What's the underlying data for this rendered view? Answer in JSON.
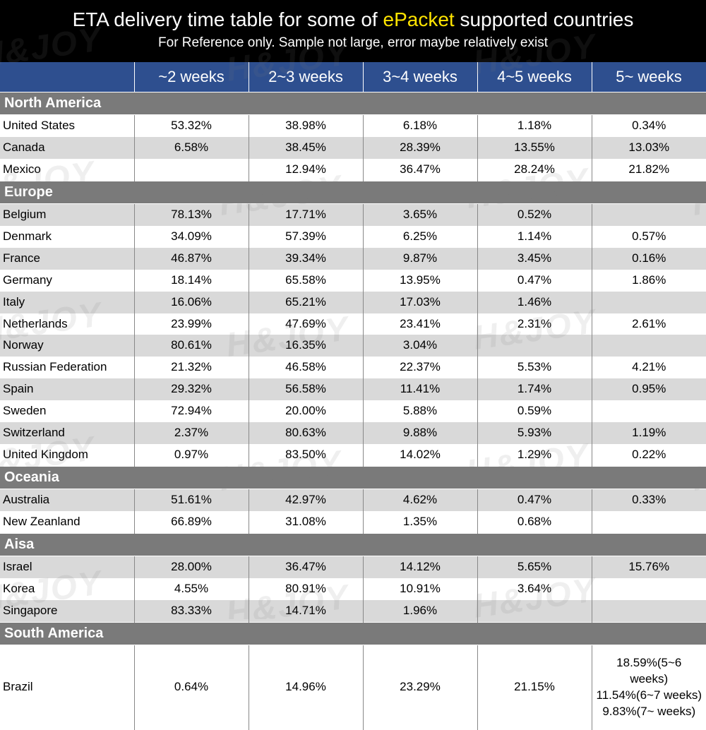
{
  "header": {
    "title_pre": "ETA delivery time table for some of ",
    "title_accent": "ePacket",
    "title_post": " supported countries",
    "subtitle": "For Reference only. Sample not large, error maybe relatively exist"
  },
  "columns": [
    "~2 weeks",
    "2~3 weeks",
    "3~4 weeks",
    "4~5 weeks",
    "5~  weeks"
  ],
  "regions": [
    {
      "name": "North America",
      "rows": [
        {
          "country": "United States",
          "alt": false,
          "v": [
            "53.32%",
            "38.98%",
            "6.18%",
            "1.18%",
            "0.34%"
          ]
        },
        {
          "country": "Canada",
          "alt": true,
          "v": [
            "6.58%",
            "38.45%",
            "28.39%",
            "13.55%",
            "13.03%"
          ]
        },
        {
          "country": "Mexico",
          "alt": false,
          "v": [
            "",
            "12.94%",
            "36.47%",
            "28.24%",
            "21.82%"
          ]
        }
      ]
    },
    {
      "name": "Europe",
      "rows": [
        {
          "country": "Belgium",
          "alt": true,
          "v": [
            "78.13%",
            "17.71%",
            "3.65%",
            "0.52%",
            ""
          ]
        },
        {
          "country": "Denmark",
          "alt": false,
          "v": [
            "34.09%",
            "57.39%",
            "6.25%",
            "1.14%",
            "0.57%"
          ]
        },
        {
          "country": "France",
          "alt": true,
          "v": [
            "46.87%",
            "39.34%",
            "9.87%",
            "3.45%",
            "0.16%"
          ]
        },
        {
          "country": "Germany",
          "alt": false,
          "v": [
            "18.14%",
            "65.58%",
            "13.95%",
            "0.47%",
            "1.86%"
          ]
        },
        {
          "country": "Italy",
          "alt": true,
          "v": [
            "16.06%",
            "65.21%",
            "17.03%",
            "1.46%",
            ""
          ]
        },
        {
          "country": "Netherlands",
          "alt": false,
          "v": [
            "23.99%",
            "47.69%",
            "23.41%",
            "2.31%",
            "2.61%"
          ]
        },
        {
          "country": "Norway",
          "alt": true,
          "v": [
            "80.61%",
            "16.35%",
            "3.04%",
            "",
            ""
          ]
        },
        {
          "country": "Russian Federation",
          "alt": false,
          "v": [
            "21.32%",
            "46.58%",
            "22.37%",
            "5.53%",
            "4.21%"
          ]
        },
        {
          "country": "Spain",
          "alt": true,
          "v": [
            "29.32%",
            "56.58%",
            "11.41%",
            "1.74%",
            "0.95%"
          ]
        },
        {
          "country": "Sweden",
          "alt": false,
          "v": [
            "72.94%",
            "20.00%",
            "5.88%",
            "0.59%",
            ""
          ]
        },
        {
          "country": "Switzerland",
          "alt": true,
          "v": [
            "2.37%",
            "80.63%",
            "9.88%",
            "5.93%",
            "1.19%"
          ]
        },
        {
          "country": "United Kingdom",
          "alt": false,
          "v": [
            "0.97%",
            "83.50%",
            "14.02%",
            "1.29%",
            "0.22%"
          ]
        }
      ]
    },
    {
      "name": "Oceania",
      "rows": [
        {
          "country": "Australia",
          "alt": true,
          "v": [
            "51.61%",
            "42.97%",
            "4.62%",
            "0.47%",
            "0.33%"
          ]
        },
        {
          "country": "New Zeanland",
          "alt": false,
          "v": [
            "66.89%",
            "31.08%",
            "1.35%",
            "0.68%",
            ""
          ]
        }
      ]
    },
    {
      "name": "Aisa",
      "rows": [
        {
          "country": "Israel",
          "alt": true,
          "v": [
            "28.00%",
            "36.47%",
            "14.12%",
            "5.65%",
            "15.76%"
          ]
        },
        {
          "country": "Korea",
          "alt": false,
          "v": [
            "4.55%",
            "80.91%",
            "10.91%",
            "3.64%",
            ""
          ]
        },
        {
          "country": "Singapore",
          "alt": true,
          "v": [
            "83.33%",
            "14.71%",
            "1.96%",
            "",
            ""
          ]
        }
      ]
    },
    {
      "name": "South America",
      "rows": [
        {
          "country": "Brazil",
          "alt": false,
          "brazil": true,
          "v": [
            "0.64%",
            "14.96%",
            "23.29%",
            "21.15%",
            "18.59%(5~6 weeks)\n11.54%(6~7 weeks)\n9.83%(7~ weeks)"
          ]
        }
      ]
    }
  ],
  "watermark_text": "H&JOY",
  "styling": {
    "header_bg": "#000000",
    "header_text": "#ffffff",
    "accent_color": "#ffe400",
    "col_header_bg": "#2e4f8f",
    "region_bg": "#7a7a7a",
    "alt_row_bg": "#d9d9d9",
    "border_color": "#888888",
    "watermark_color": "rgba(120,120,120,0.12)",
    "title_fontsize": 28,
    "subtitle_fontsize": 19,
    "col_header_fontsize": 22,
    "region_fontsize": 20,
    "cell_fontsize": 17
  }
}
